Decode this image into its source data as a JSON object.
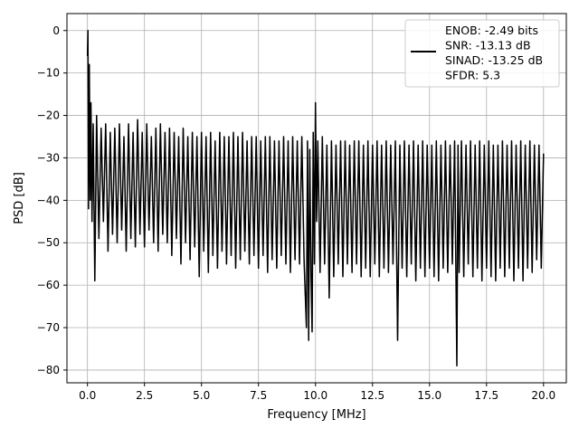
{
  "chart_data": {
    "type": "line",
    "title": "",
    "xlabel": "Frequency [MHz]",
    "ylabel": "PSD [dB]",
    "xlim": [
      -0.9,
      21.0
    ],
    "ylim": [
      -83,
      4
    ],
    "x_ticks": [
      0.0,
      2.5,
      5.0,
      7.5,
      10.0,
      12.5,
      15.0,
      17.5,
      20.0
    ],
    "x_tick_labels": [
      "0.0",
      "2.5",
      "5.0",
      "7.5",
      "10.0",
      "12.5",
      "15.0",
      "17.5",
      "20.0"
    ],
    "y_ticks": [
      0,
      -10,
      -20,
      -30,
      -40,
      -50,
      -60,
      -70,
      -80
    ],
    "y_tick_labels": [
      "0",
      "−10",
      "−20",
      "−30",
      "−40",
      "−50",
      "−60",
      "−70",
      "−80"
    ],
    "grid": true,
    "legend_position": "top-right",
    "series": [
      {
        "name": "ENOB: -2.49 bits\nSNR: -13.13 dB\nSINAD: -13.25 dB\nSFDR: 5.3",
        "color": "#000000",
        "points": [
          [
            0.0,
            -6
          ],
          [
            0.02,
            0
          ],
          [
            0.05,
            -42
          ],
          [
            0.08,
            -8
          ],
          [
            0.12,
            -40
          ],
          [
            0.15,
            -17
          ],
          [
            0.2,
            -45
          ],
          [
            0.25,
            -22
          ],
          [
            0.32,
            -59
          ],
          [
            0.4,
            -20
          ],
          [
            0.5,
            -49
          ],
          [
            0.6,
            -23
          ],
          [
            0.7,
            -45
          ],
          [
            0.8,
            -22
          ],
          [
            0.9,
            -52
          ],
          [
            1.0,
            -24
          ],
          [
            1.1,
            -48
          ],
          [
            1.2,
            -23
          ],
          [
            1.3,
            -50
          ],
          [
            1.4,
            -22
          ],
          [
            1.5,
            -47
          ],
          [
            1.6,
            -25
          ],
          [
            1.7,
            -52
          ],
          [
            1.8,
            -22
          ],
          [
            1.9,
            -49
          ],
          [
            2.0,
            -24
          ],
          [
            2.1,
            -51
          ],
          [
            2.2,
            -21
          ],
          [
            2.3,
            -48
          ],
          [
            2.4,
            -24
          ],
          [
            2.5,
            -51
          ],
          [
            2.6,
            -22
          ],
          [
            2.7,
            -47
          ],
          [
            2.8,
            -25
          ],
          [
            2.9,
            -50
          ],
          [
            3.0,
            -23
          ],
          [
            3.1,
            -52
          ],
          [
            3.2,
            -22
          ],
          [
            3.3,
            -48
          ],
          [
            3.4,
            -24
          ],
          [
            3.5,
            -50
          ],
          [
            3.6,
            -23
          ],
          [
            3.7,
            -53
          ],
          [
            3.8,
            -24
          ],
          [
            3.9,
            -49
          ],
          [
            4.0,
            -25
          ],
          [
            4.1,
            -55
          ],
          [
            4.2,
            -23
          ],
          [
            4.3,
            -50
          ],
          [
            4.4,
            -25
          ],
          [
            4.5,
            -54
          ],
          [
            4.6,
            -24
          ],
          [
            4.7,
            -51
          ],
          [
            4.8,
            -25
          ],
          [
            4.9,
            -58
          ],
          [
            5.0,
            -24
          ],
          [
            5.1,
            -52
          ],
          [
            5.2,
            -25
          ],
          [
            5.3,
            -57
          ],
          [
            5.4,
            -24
          ],
          [
            5.5,
            -53
          ],
          [
            5.6,
            -26
          ],
          [
            5.7,
            -56
          ],
          [
            5.8,
            -24
          ],
          [
            5.9,
            -52
          ],
          [
            6.0,
            -25
          ],
          [
            6.1,
            -55
          ],
          [
            6.2,
            -25
          ],
          [
            6.3,
            -53
          ],
          [
            6.4,
            -24
          ],
          [
            6.5,
            -56
          ],
          [
            6.6,
            -25
          ],
          [
            6.7,
            -54
          ],
          [
            6.8,
            -24
          ],
          [
            6.9,
            -52
          ],
          [
            7.0,
            -26
          ],
          [
            7.1,
            -55
          ],
          [
            7.2,
            -25
          ],
          [
            7.3,
            -53
          ],
          [
            7.4,
            -25
          ],
          [
            7.5,
            -56
          ],
          [
            7.6,
            -26
          ],
          [
            7.7,
            -53
          ],
          [
            7.8,
            -25
          ],
          [
            7.9,
            -57
          ],
          [
            8.0,
            -25
          ],
          [
            8.1,
            -54
          ],
          [
            8.2,
            -26
          ],
          [
            8.3,
            -56
          ],
          [
            8.4,
            -26
          ],
          [
            8.5,
            -53
          ],
          [
            8.6,
            -25
          ],
          [
            8.7,
            -55
          ],
          [
            8.8,
            -26
          ],
          [
            8.9,
            -57
          ],
          [
            9.0,
            -25
          ],
          [
            9.1,
            -54
          ],
          [
            9.2,
            -26
          ],
          [
            9.3,
            -55
          ],
          [
            9.4,
            -25
          ],
          [
            9.5,
            -54
          ],
          [
            9.6,
            -70
          ],
          [
            9.65,
            -26
          ],
          [
            9.7,
            -73
          ],
          [
            9.75,
            -28
          ],
          [
            9.8,
            -56
          ],
          [
            9.85,
            -71
          ],
          [
            9.9,
            -24
          ],
          [
            9.95,
            -55
          ],
          [
            10.0,
            -17
          ],
          [
            10.05,
            -45
          ],
          [
            10.1,
            -26
          ],
          [
            10.2,
            -57
          ],
          [
            10.3,
            -25
          ],
          [
            10.4,
            -55
          ],
          [
            10.5,
            -27
          ],
          [
            10.6,
            -63
          ],
          [
            10.7,
            -26
          ],
          [
            10.8,
            -58
          ],
          [
            10.9,
            -27
          ],
          [
            11.0,
            -55
          ],
          [
            11.1,
            -26
          ],
          [
            11.2,
            -58
          ],
          [
            11.3,
            -26
          ],
          [
            11.4,
            -55
          ],
          [
            11.5,
            -27
          ],
          [
            11.6,
            -57
          ],
          [
            11.7,
            -26
          ],
          [
            11.8,
            -55
          ],
          [
            11.9,
            -26
          ],
          [
            12.0,
            -58
          ],
          [
            12.1,
            -27
          ],
          [
            12.2,
            -56
          ],
          [
            12.3,
            -26
          ],
          [
            12.4,
            -58
          ],
          [
            12.5,
            -27
          ],
          [
            12.6,
            -55
          ],
          [
            12.7,
            -26
          ],
          [
            12.8,
            -58
          ],
          [
            12.9,
            -27
          ],
          [
            13.0,
            -56
          ],
          [
            13.1,
            -26
          ],
          [
            13.2,
            -57
          ],
          [
            13.3,
            -27
          ],
          [
            13.4,
            -55
          ],
          [
            13.5,
            -26
          ],
          [
            13.6,
            -73
          ],
          [
            13.7,
            -27
          ],
          [
            13.8,
            -56
          ],
          [
            13.9,
            -26
          ],
          [
            14.0,
            -58
          ],
          [
            14.1,
            -27
          ],
          [
            14.2,
            -55
          ],
          [
            14.3,
            -26
          ],
          [
            14.4,
            -59
          ],
          [
            14.5,
            -27
          ],
          [
            14.6,
            -56
          ],
          [
            14.7,
            -26
          ],
          [
            14.8,
            -58
          ],
          [
            14.9,
            -27
          ],
          [
            15.0,
            -56
          ],
          [
            15.1,
            -27
          ],
          [
            15.2,
            -58
          ],
          [
            15.3,
            -26
          ],
          [
            15.4,
            -59
          ],
          [
            15.5,
            -27
          ],
          [
            15.6,
            -56
          ],
          [
            15.7,
            -26
          ],
          [
            15.8,
            -57
          ],
          [
            15.9,
            -27
          ],
          [
            16.0,
            -55
          ],
          [
            16.1,
            -26
          ],
          [
            16.2,
            -79
          ],
          [
            16.25,
            -27
          ],
          [
            16.3,
            -57
          ],
          [
            16.4,
            -26
          ],
          [
            16.5,
            -58
          ],
          [
            16.6,
            -27
          ],
          [
            16.7,
            -55
          ],
          [
            16.8,
            -26
          ],
          [
            16.9,
            -58
          ],
          [
            17.0,
            -27
          ],
          [
            17.1,
            -56
          ],
          [
            17.2,
            -26
          ],
          [
            17.3,
            -59
          ],
          [
            17.4,
            -27
          ],
          [
            17.5,
            -56
          ],
          [
            17.6,
            -26
          ],
          [
            17.7,
            -58
          ],
          [
            17.8,
            -27
          ],
          [
            17.9,
            -59
          ],
          [
            18.0,
            -27
          ],
          [
            18.1,
            -56
          ],
          [
            18.2,
            -26
          ],
          [
            18.3,
            -58
          ],
          [
            18.4,
            -27
          ],
          [
            18.5,
            -56
          ],
          [
            18.6,
            -26
          ],
          [
            18.7,
            -59
          ],
          [
            18.8,
            -27
          ],
          [
            18.9,
            -56
          ],
          [
            19.0,
            -26
          ],
          [
            19.1,
            -59
          ],
          [
            19.2,
            -27
          ],
          [
            19.3,
            -56
          ],
          [
            19.4,
            -26
          ],
          [
            19.5,
            -57
          ],
          [
            19.6,
            -27
          ],
          [
            19.7,
            -54
          ],
          [
            19.8,
            -27
          ],
          [
            19.9,
            -56
          ],
          [
            20.0,
            -29
          ]
        ]
      }
    ],
    "legend_lines": [
      "ENOB: -2.49 bits",
      "SNR: -13.13 dB",
      "SINAD: -13.25 dB",
      "SFDR: 5.3"
    ],
    "colors": {
      "line": "#000000",
      "grid": "#b0b0b0",
      "axes": "#000000",
      "legend_border": "#cccccc"
    }
  }
}
